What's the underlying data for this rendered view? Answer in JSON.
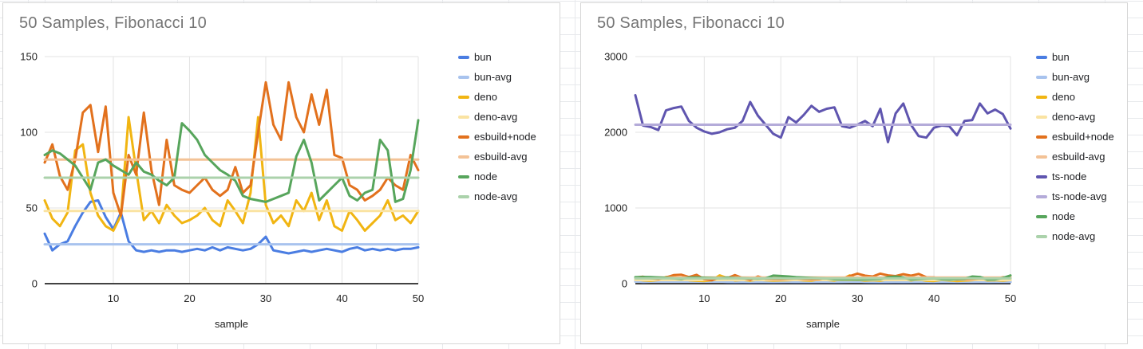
{
  "page": {
    "background": "#ffffff",
    "spreadsheet_grid_color": "#e7e9ec",
    "card_border_color": "#d6d6d6"
  },
  "chart_data": [
    {
      "type": "line",
      "title": "50 Samples, Fibonacci 10",
      "xlabel": "sample",
      "legend_position": "right",
      "grid": true,
      "xlim": [
        1,
        50
      ],
      "ylim": [
        0,
        150
      ],
      "x_ticks": [
        10,
        20,
        30,
        40,
        50
      ],
      "y_ticks": [
        0,
        50,
        100,
        150
      ],
      "title_color": "#757575",
      "axis_text_color": "#222222",
      "gridline_color": "#e3e3e3",
      "baseline_color": "#424242",
      "series": [
        {
          "name": "bun",
          "color": "#4a7de2",
          "values": [
            33,
            22,
            26,
            28,
            38,
            47,
            54,
            55,
            44,
            36,
            47,
            28,
            22,
            21,
            22,
            21,
            22,
            22,
            21,
            22,
            23,
            22,
            24,
            22,
            24,
            23,
            22,
            23,
            26,
            31,
            22,
            21,
            20,
            21,
            22,
            21,
            22,
            23,
            22,
            21,
            23,
            24,
            22,
            23,
            22,
            23,
            22,
            23,
            23,
            24
          ]
        },
        {
          "name": "bun-avg",
          "color": "#a8c3ee",
          "value": 26
        },
        {
          "name": "deno",
          "color": "#f1b512",
          "values": [
            55,
            43,
            38,
            47,
            88,
            92,
            60,
            45,
            38,
            35,
            45,
            110,
            75,
            42,
            48,
            40,
            52,
            45,
            40,
            42,
            45,
            50,
            42,
            38,
            55,
            48,
            40,
            60,
            110,
            52,
            40,
            45,
            38,
            55,
            48,
            60,
            42,
            55,
            38,
            35,
            48,
            42,
            35,
            40,
            45,
            55,
            42,
            45,
            40,
            48
          ]
        },
        {
          "name": "deno-avg",
          "color": "#fae3a2",
          "value": 48
        },
        {
          "name": "esbuild+node",
          "color": "#e2711d",
          "values": [
            80,
            92,
            71,
            62,
            82,
            113,
            118,
            87,
            117,
            60,
            45,
            85,
            72,
            113,
            75,
            52,
            95,
            65,
            62,
            60,
            65,
            70,
            62,
            58,
            62,
            77,
            60,
            65,
            100,
            133,
            105,
            95,
            133,
            110,
            100,
            125,
            105,
            128,
            85,
            83,
            65,
            62,
            55,
            58,
            62,
            70,
            65,
            62,
            85,
            75
          ]
        },
        {
          "name": "esbuild-avg",
          "color": "#f3c296",
          "value": 82
        },
        {
          "name": "node",
          "color": "#57a55c",
          "values": [
            85,
            88,
            86,
            82,
            78,
            70,
            62,
            80,
            82,
            78,
            75,
            72,
            80,
            74,
            72,
            68,
            65,
            70,
            106,
            101,
            95,
            85,
            80,
            75,
            72,
            68,
            58,
            56,
            55,
            54,
            56,
            58,
            60,
            84,
            95,
            80,
            55,
            60,
            65,
            70,
            58,
            55,
            60,
            62,
            95,
            88,
            54,
            56,
            75,
            108
          ]
        },
        {
          "name": "node-avg",
          "color": "#abd2ab",
          "value": 70
        }
      ]
    },
    {
      "type": "line",
      "title": "50 Samples, Fibonacci 10",
      "xlabel": "sample",
      "legend_position": "right",
      "grid": true,
      "xlim": [
        1,
        50
      ],
      "ylim": [
        0,
        3000
      ],
      "x_ticks": [
        10,
        20,
        30,
        40,
        50
      ],
      "y_ticks": [
        0,
        1000,
        2000,
        3000
      ],
      "title_color": "#757575",
      "axis_text_color": "#222222",
      "gridline_color": "#e3e3e3",
      "baseline_color": "#424242",
      "series": [
        {
          "name": "bun",
          "color": "#4a7de2",
          "values": [
            33,
            22,
            26,
            28,
            38,
            47,
            54,
            55,
            44,
            36,
            47,
            28,
            22,
            21,
            22,
            21,
            22,
            22,
            21,
            22,
            23,
            22,
            24,
            22,
            24,
            23,
            22,
            23,
            26,
            31,
            22,
            21,
            20,
            21,
            22,
            21,
            22,
            23,
            22,
            21,
            23,
            24,
            22,
            23,
            22,
            23,
            22,
            23,
            23,
            24
          ]
        },
        {
          "name": "bun-avg",
          "color": "#a8c3ee",
          "value": 26
        },
        {
          "name": "deno",
          "color": "#f1b512",
          "values": [
            55,
            43,
            38,
            47,
            88,
            92,
            60,
            45,
            38,
            35,
            45,
            110,
            75,
            42,
            48,
            40,
            52,
            45,
            40,
            42,
            45,
            50,
            42,
            38,
            55,
            48,
            40,
            60,
            110,
            52,
            40,
            45,
            38,
            55,
            48,
            60,
            42,
            55,
            38,
            35,
            48,
            42,
            35,
            40,
            45,
            55,
            42,
            45,
            40,
            48
          ]
        },
        {
          "name": "deno-avg",
          "color": "#fae3a2",
          "value": 48
        },
        {
          "name": "esbuild+node",
          "color": "#e2711d",
          "values": [
            80,
            92,
            71,
            62,
            82,
            113,
            118,
            87,
            117,
            60,
            45,
            85,
            72,
            113,
            75,
            52,
            95,
            65,
            62,
            60,
            65,
            70,
            62,
            58,
            62,
            77,
            60,
            65,
            100,
            133,
            105,
            95,
            133,
            110,
            100,
            125,
            105,
            128,
            85,
            83,
            65,
            62,
            55,
            58,
            62,
            70,
            65,
            62,
            85,
            75
          ]
        },
        {
          "name": "esbuild-avg",
          "color": "#f3c296",
          "value": 82
        },
        {
          "name": "ts-node",
          "color": "#5f55af",
          "values": [
            2490,
            2090,
            2070,
            2030,
            2290,
            2320,
            2340,
            2150,
            2060,
            2010,
            1980,
            2000,
            2040,
            2060,
            2150,
            2400,
            2220,
            2100,
            1980,
            1930,
            2200,
            2130,
            2230,
            2350,
            2270,
            2310,
            2330,
            2080,
            2060,
            2100,
            2150,
            2080,
            2310,
            1870,
            2250,
            2380,
            2100,
            1950,
            1930,
            2060,
            2090,
            2080,
            1960,
            2150,
            2160,
            2380,
            2250,
            2300,
            2240,
            2050
          ]
        },
        {
          "name": "ts-node-avg",
          "color": "#b4abd9",
          "value": 2100
        },
        {
          "name": "node",
          "color": "#57a55c",
          "values": [
            85,
            88,
            86,
            82,
            78,
            70,
            62,
            80,
            82,
            78,
            75,
            72,
            80,
            74,
            72,
            68,
            65,
            70,
            106,
            101,
            95,
            85,
            80,
            75,
            72,
            68,
            58,
            56,
            55,
            54,
            56,
            58,
            60,
            84,
            95,
            80,
            55,
            60,
            65,
            70,
            58,
            55,
            60,
            62,
            95,
            88,
            54,
            56,
            75,
            108
          ]
        },
        {
          "name": "node-avg",
          "color": "#abd2ab",
          "value": 70
        }
      ]
    }
  ]
}
